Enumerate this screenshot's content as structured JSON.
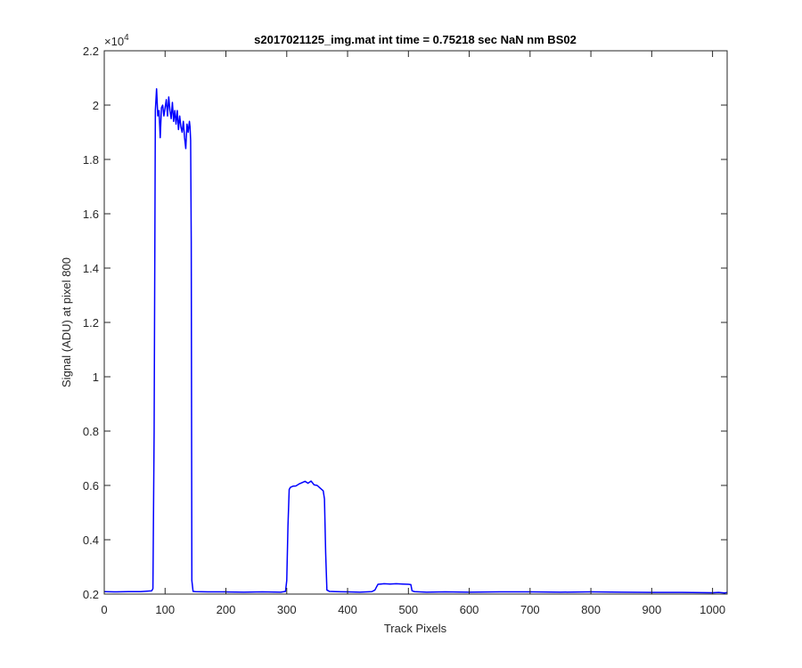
{
  "chart_data": {
    "type": "line",
    "title": "s2017021125_img.mat int time = 0.75218 sec  NaN nm BS02",
    "xlabel": "Track Pixels",
    "ylabel": "Signal (ADU) at pixel 800",
    "y_exponent_label": "×10",
    "y_exponent": "4",
    "xlim": [
      0,
      1024
    ],
    "ylim": [
      0.2,
      2.2
    ],
    "y_scale_factor": 10000,
    "x_ticks": [
      0,
      100,
      200,
      300,
      400,
      500,
      600,
      700,
      800,
      900,
      1000
    ],
    "x_tick_labels": [
      "0",
      "100",
      "200",
      "300",
      "400",
      "500",
      "600",
      "700",
      "800",
      "900",
      "1000"
    ],
    "y_ticks": [
      0.2,
      0.4,
      0.6,
      0.8,
      1.0,
      1.2,
      1.4,
      1.6,
      1.8,
      2.0,
      2.2
    ],
    "y_tick_labels": [
      "0.2",
      "0.4",
      "0.6",
      "0.8",
      "1",
      "1.2",
      "1.4",
      "1.6",
      "1.8",
      "2",
      "2.2"
    ],
    "grid": false,
    "series": [
      {
        "color": "#0000ff",
        "x": [
          0,
          20,
          40,
          60,
          78,
          80,
          82,
          84,
          86,
          88,
          90,
          92,
          94,
          96,
          98,
          100,
          102,
          104,
          106,
          108,
          110,
          112,
          114,
          116,
          118,
          120,
          122,
          124,
          126,
          128,
          130,
          132,
          134,
          136,
          138,
          140,
          141,
          142,
          143,
          144,
          146,
          150,
          170,
          200,
          230,
          260,
          290,
          298,
          300,
          302,
          304,
          306,
          310,
          315,
          320,
          325,
          330,
          335,
          340,
          345,
          350,
          355,
          360,
          362,
          364,
          366,
          370,
          380,
          400,
          420,
          440,
          445,
          448,
          450,
          455,
          460,
          470,
          480,
          490,
          500,
          504,
          506,
          510,
          530,
          560,
          600,
          650,
          700,
          750,
          800,
          850,
          900,
          950,
          1000,
          1010,
          1020,
          1024
        ],
        "y": [
          0.209,
          0.208,
          0.209,
          0.209,
          0.212,
          0.22,
          0.8,
          1.98,
          2.06,
          1.96,
          1.98,
          1.88,
          1.99,
          2.0,
          1.96,
          1.99,
          2.02,
          1.96,
          2.03,
          1.98,
          1.95,
          2.01,
          1.94,
          1.98,
          1.93,
          1.98,
          1.91,
          1.96,
          1.92,
          1.9,
          1.94,
          1.88,
          1.84,
          1.93,
          1.9,
          1.94,
          1.92,
          1.87,
          1.5,
          0.25,
          0.21,
          0.209,
          0.208,
          0.208,
          0.207,
          0.208,
          0.207,
          0.21,
          0.25,
          0.45,
          0.585,
          0.593,
          0.597,
          0.598,
          0.605,
          0.61,
          0.615,
          0.608,
          0.616,
          0.602,
          0.6,
          0.59,
          0.58,
          0.55,
          0.35,
          0.215,
          0.21,
          0.209,
          0.208,
          0.207,
          0.209,
          0.215,
          0.228,
          0.236,
          0.237,
          0.238,
          0.237,
          0.238,
          0.237,
          0.236,
          0.235,
          0.212,
          0.209,
          0.207,
          0.208,
          0.207,
          0.208,
          0.208,
          0.207,
          0.208,
          0.207,
          0.206,
          0.206,
          0.205,
          0.206,
          0.204,
          0.206
        ]
      }
    ]
  }
}
